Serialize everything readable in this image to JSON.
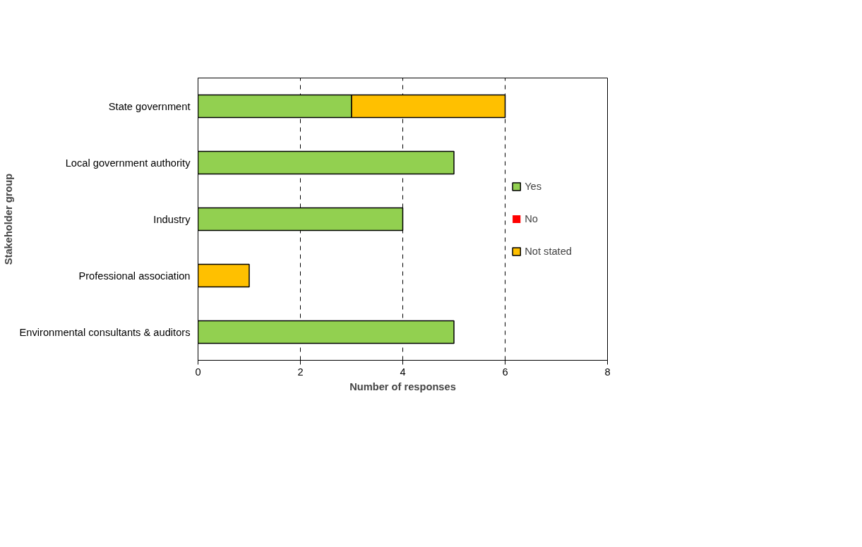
{
  "chart_data": {
    "type": "bar",
    "orientation": "horizontal",
    "stacked": true,
    "categories": [
      "State government",
      "Local government authority",
      "Industry",
      "Professional association",
      "Environmental consultants & auditors"
    ],
    "series": [
      {
        "name": "Yes",
        "color": "#92d050",
        "values": [
          3,
          5,
          4,
          0,
          5
        ]
      },
      {
        "name": "No",
        "color": "#ff0000",
        "values": [
          0,
          0,
          0,
          0,
          0
        ]
      },
      {
        "name": "Not stated",
        "color": "#ffc000",
        "values": [
          3,
          0,
          0,
          1,
          0
        ]
      }
    ],
    "xlabel": "Number of responses",
    "ylabel": "Stakeholder group",
    "xlim": [
      0,
      8
    ],
    "xticks": [
      0,
      2,
      4,
      6,
      8
    ],
    "grid": "x",
    "legend": "right"
  }
}
